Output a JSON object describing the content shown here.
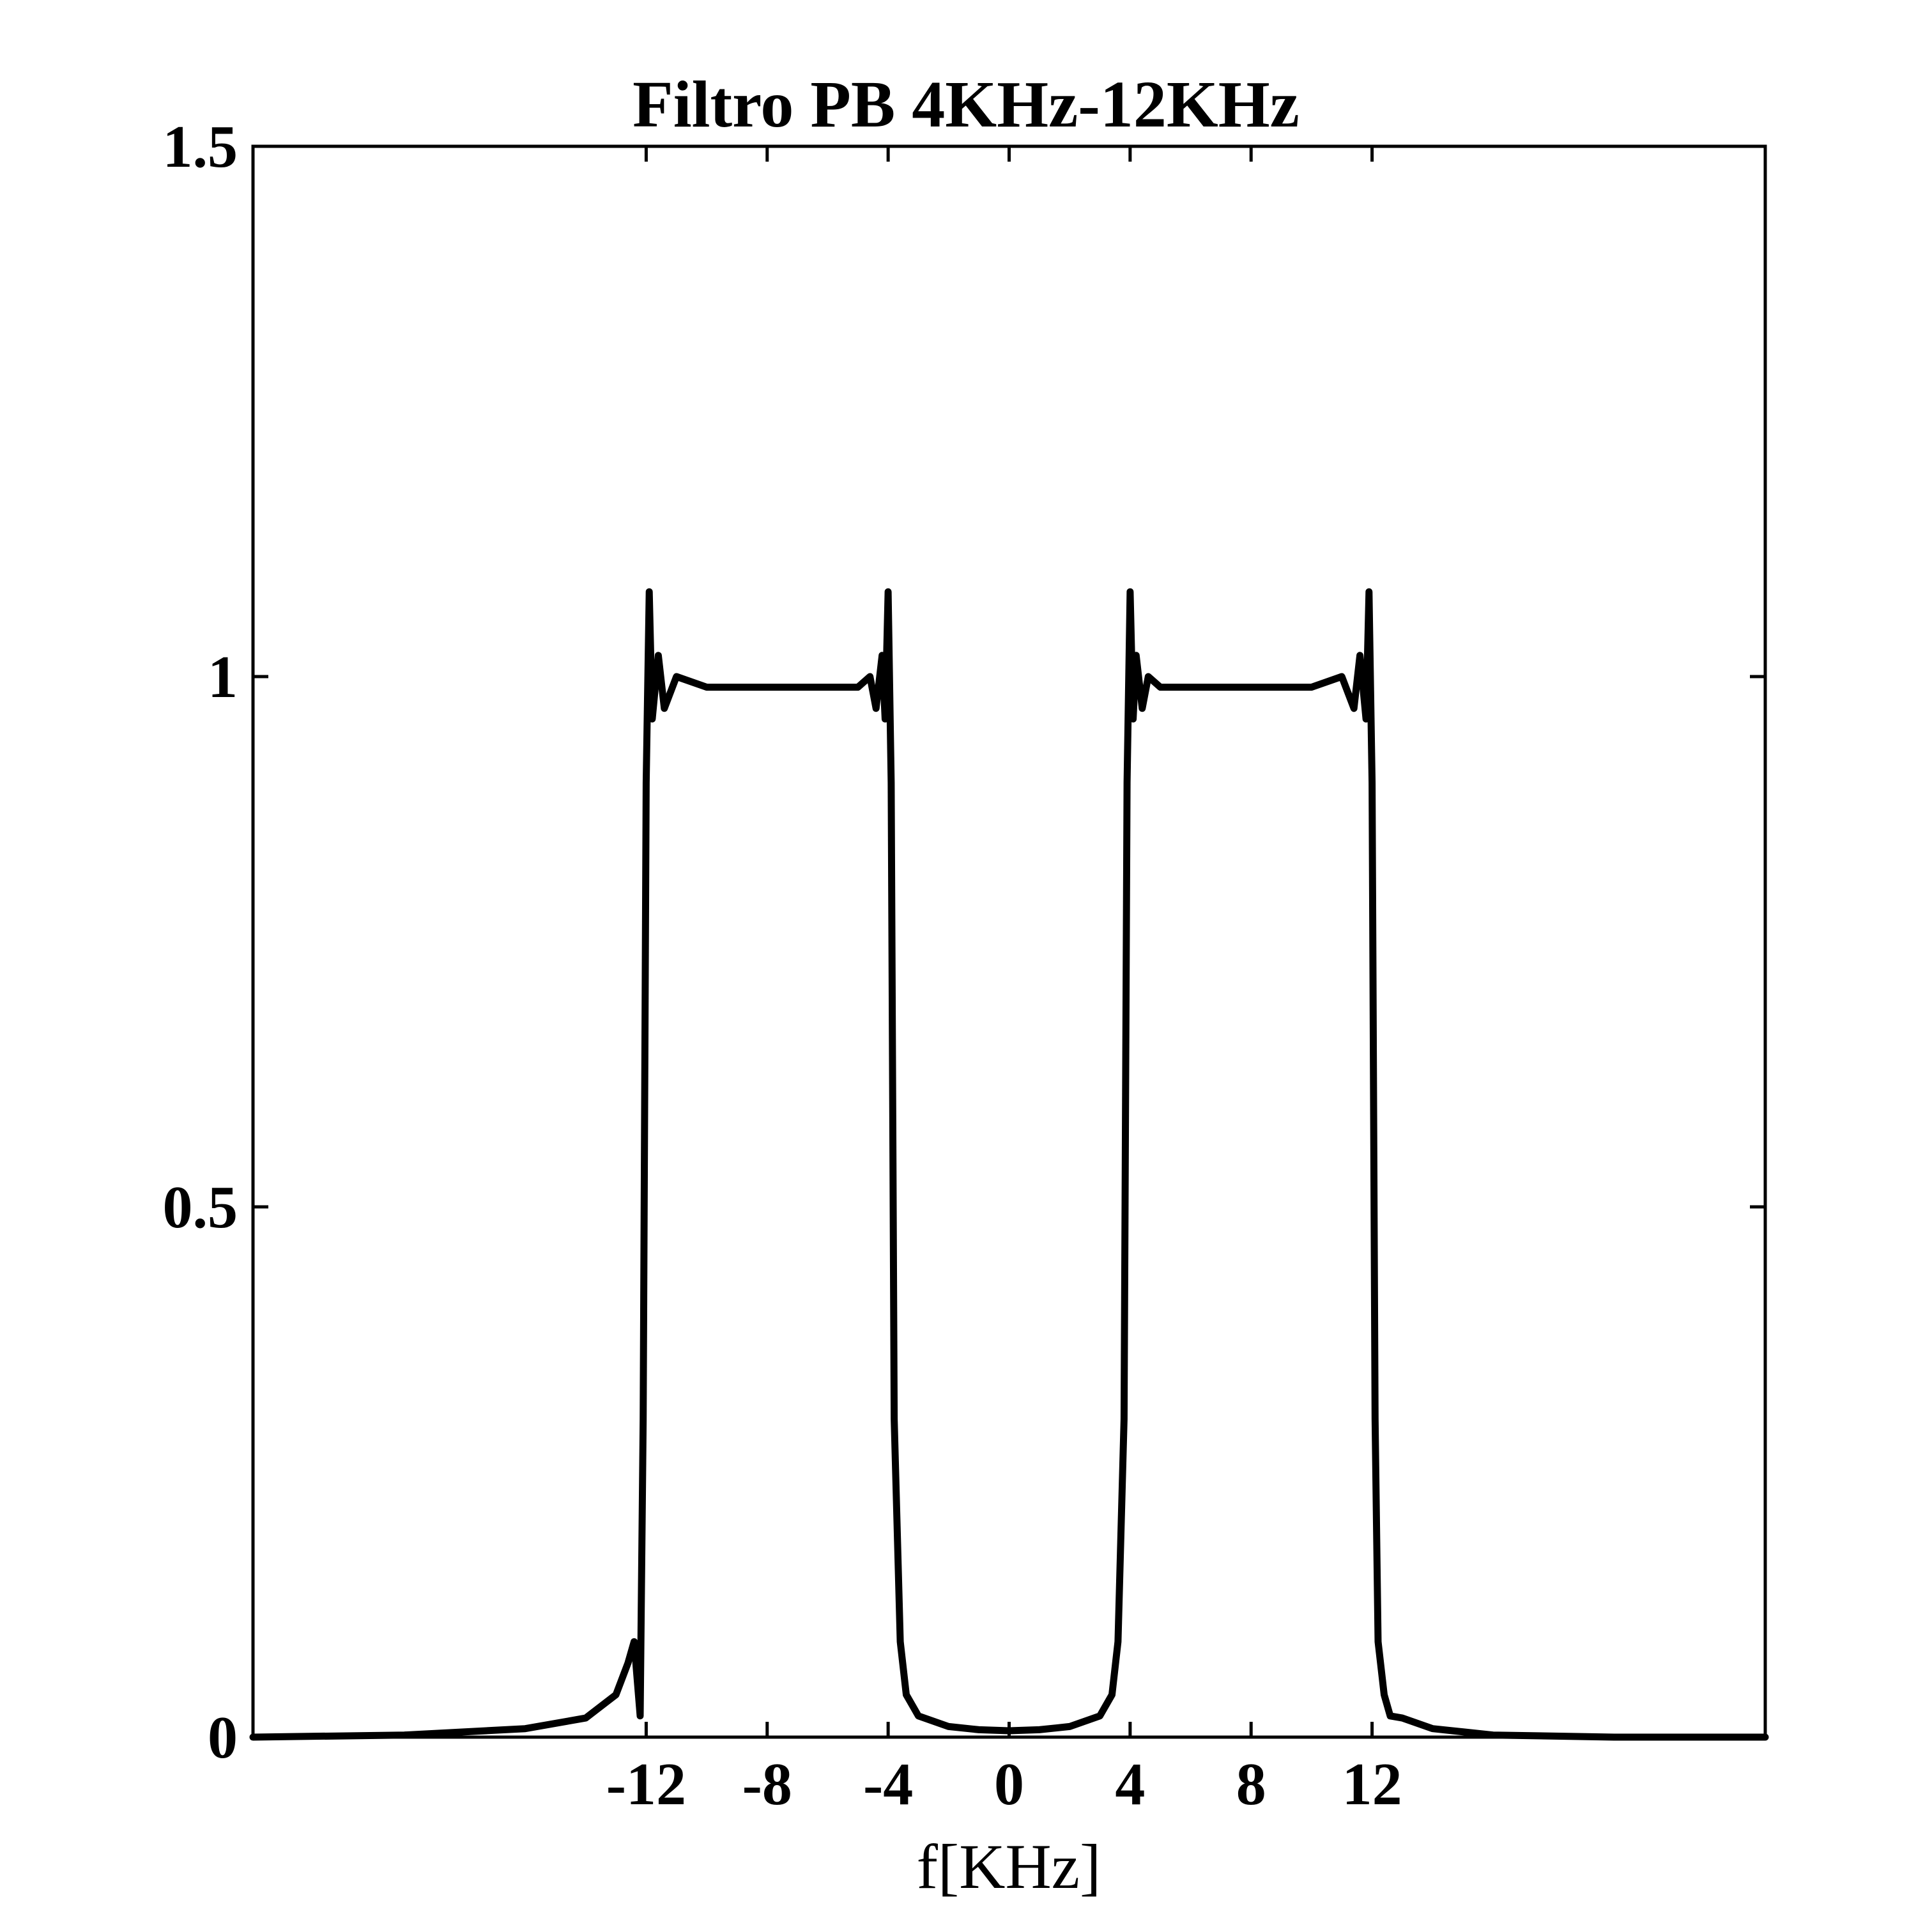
{
  "chart_data": {
    "type": "line",
    "title": "Filtro PB 4KHz-12KHz",
    "xlabel": "f[KHz]",
    "ylabel": "",
    "xlim": [
      -25,
      25
    ],
    "ylim": [
      0,
      1.5
    ],
    "xticks": [
      -12,
      -8,
      -4,
      0,
      4,
      8,
      12
    ],
    "xtick_labels": [
      "-12",
      "-8",
      "-4",
      "0",
      "4",
      "8",
      "12"
    ],
    "yticks": [
      0,
      0.5,
      1,
      1.5
    ],
    "ytick_labels": [
      "0",
      "0.5",
      "1",
      "1.5"
    ],
    "grid": false,
    "legend": "none",
    "line_color": "#000000",
    "series": [
      {
        "x": [
          -25,
          -20,
          -16,
          -14,
          -13,
          -12.6,
          -12.4,
          -12.2,
          -12.1,
          -12.0,
          -11.9,
          -11.8,
          -11.6,
          -11.4,
          -11.0,
          -10.0,
          -9.0,
          -8.0,
          -7.0,
          -6.0,
          -5.0,
          -4.6,
          -4.4,
          -4.2,
          -4.1,
          -4.0,
          -3.9,
          -3.8,
          -3.6,
          -3.4,
          -3.0,
          -2.0,
          -1.0,
          0,
          1.0,
          2.0,
          3.0,
          3.4,
          3.6,
          3.8,
          3.9,
          4.0,
          4.1,
          4.2,
          4.4,
          4.6,
          5.0,
          6.0,
          7.0,
          8.0,
          9.0,
          10.0,
          11.0,
          11.4,
          11.6,
          11.8,
          11.9,
          12.0,
          12.1,
          12.2,
          12.4,
          12.6,
          13.0,
          14.0,
          16.0,
          20.0,
          25.0
        ],
        "y": [
          0.0,
          0.002,
          0.008,
          0.018,
          0.04,
          0.07,
          0.09,
          0.02,
          0.3,
          0.9,
          1.08,
          0.96,
          1.02,
          0.97,
          1.0,
          0.99,
          0.99,
          0.99,
          0.99,
          0.99,
          0.99,
          1.0,
          0.97,
          1.02,
          0.96,
          1.08,
          0.9,
          0.3,
          0.09,
          0.04,
          0.02,
          0.01,
          0.007,
          0.006,
          0.007,
          0.01,
          0.02,
          0.04,
          0.09,
          0.3,
          0.9,
          1.08,
          0.96,
          1.02,
          0.97,
          1.0,
          0.99,
          0.99,
          0.99,
          0.99,
          0.99,
          0.99,
          1.0,
          0.97,
          1.02,
          0.96,
          1.08,
          0.9,
          0.3,
          0.09,
          0.04,
          0.02,
          0.018,
          0.008,
          0.002,
          0.0,
          0.0
        ]
      }
    ]
  }
}
